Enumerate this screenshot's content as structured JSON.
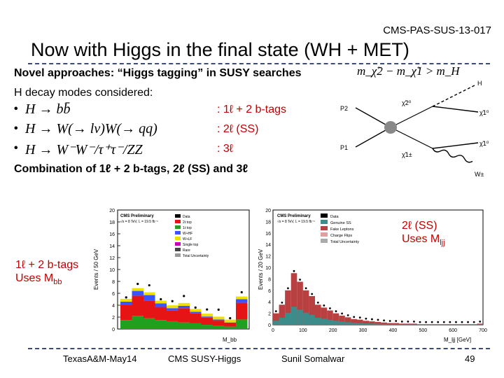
{
  "header": {
    "doc_ref": "CMS-PAS-SUS-13-017",
    "title": "Now with Higgs in the final state (WH + MET)"
  },
  "intro": {
    "novel": "Novel approaches: “Higgs tagging” in SUSY searches",
    "decays_label": "H decay modes considered:",
    "mass_condition": "m_χ̃2 − m_χ̃1 > m_H"
  },
  "decays": [
    {
      "bullet": "•",
      "formula": "H → bb̄",
      "result": ": 1ℓ + 2 b-tags",
      "color": "#c00000"
    },
    {
      "bullet": "•",
      "formula": "H → W(→ lν)W(→ qq)",
      "result": ": 2ℓ (SS)",
      "color": "#c00000"
    },
    {
      "bullet": "•",
      "formula": "H → W⁻W⁻/τ⁺τ⁻/ZZ",
      "result": ": 3ℓ",
      "color": "#c00000"
    }
  ],
  "combination": "Combination of 1ℓ + 2 b-tags, 2ℓ (SS) and 3ℓ",
  "feynman": {
    "p2": "P2",
    "p1": "P1",
    "chi2": "χ̃2⁰",
    "chi1a": "χ̃1⁰",
    "chi1pm": "χ̃1±",
    "chi1b": "χ̃1⁰",
    "h": "H",
    "w": "W±"
  },
  "annotations": {
    "left_line1": "1ℓ + 2 b-tags",
    "left_line2": "Uses M",
    "left_sub": "bb",
    "right_line1": "2ℓ (SS)",
    "right_line2": "Uses M",
    "right_sub": "ljj"
  },
  "plot_left": {
    "ylabel": "Events / 50 GeV",
    "tag": "CMS Preliminary",
    "lumi": "√s = 8 TeV, L = 19.5 fb⁻¹",
    "legend": [
      "Data",
      "2ℓ top",
      "1ℓ top",
      "W+HF",
      "W+LF",
      "Single top",
      "Rare",
      "Total Uncertainty"
    ],
    "xlabel": "M_bb",
    "yticks": [
      "0",
      "2",
      "4",
      "6",
      "8",
      "10",
      "12",
      "14",
      "16",
      "18",
      "20"
    ],
    "colors": {
      "green": "#1fa01f",
      "red": "#e61414",
      "blue": "#3a54ff",
      "yellow": "#f0e000",
      "magenta": "#c000c0"
    }
  },
  "plot_right": {
    "ylabel": "Events / 20 GeV",
    "tag": "CMS Preliminary",
    "lumi": "√s = 8 TeV, L = 19.5 fb⁻¹",
    "legend": [
      "Data",
      "Genuine SS",
      "Fake Leptons",
      "Charge Flips",
      "Total Uncertainty"
    ],
    "xlabel": "M_ljj [GeV]",
    "xticks": [
      "0",
      "100",
      "200",
      "300",
      "400",
      "500",
      "600",
      "700"
    ],
    "yticks": [
      "0",
      "2",
      "4",
      "6",
      "8",
      "10",
      "12",
      "14",
      "16",
      "18",
      "20"
    ],
    "colors": {
      "teal": "#3c8c8c",
      "red": "#b84040",
      "blue": "#2030c0"
    }
  },
  "footer": {
    "left": "TexasA&M-May14",
    "center": "CMS SUSY-Higgs",
    "speaker": "Sunil Somalwar",
    "page": "49"
  }
}
